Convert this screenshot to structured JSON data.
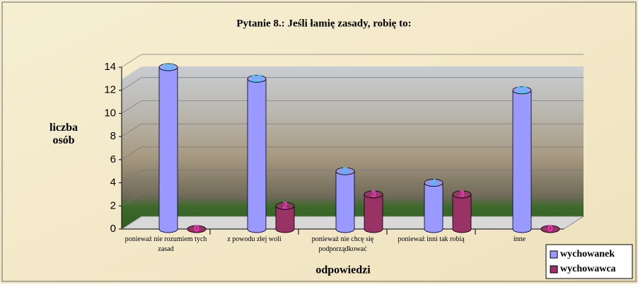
{
  "chart_data": {
    "type": "bar",
    "title": "Pytanie 8.: Jeśli łamię zasady, robię to:",
    "y_label": "liczba osób",
    "x_label": "odpowiedzi",
    "categories": [
      "ponieważ nie rozumiem tych zasad",
      "z powodu złej woli",
      "ponieważ nie chcę się podporządkować",
      "ponieważ inni tak robią",
      "inne"
    ],
    "series": [
      {
        "name": "wychowanek",
        "color": "#9999ff",
        "values": [
          14,
          13,
          5,
          4,
          12
        ]
      },
      {
        "name": "wychowawca",
        "color": "#993366",
        "values": [
          0,
          2,
          3,
          3,
          0
        ]
      }
    ],
    "ylim": [
      0,
      14
    ],
    "yticks": [
      0,
      2,
      4,
      6,
      8,
      10,
      12,
      14
    ],
    "grid": true,
    "legend": "bottom-right"
  }
}
